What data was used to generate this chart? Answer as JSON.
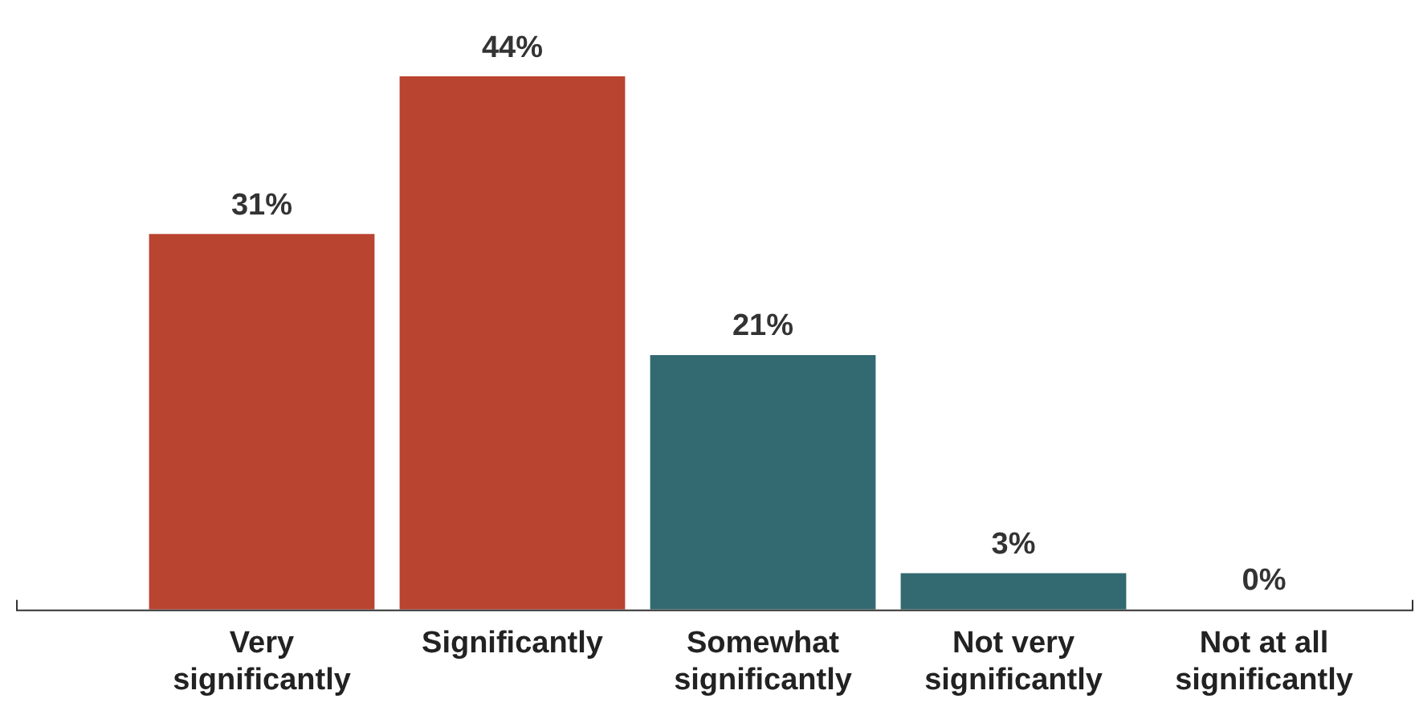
{
  "chart_data": {
    "type": "bar",
    "categories": [
      "Very significantly",
      "Significantly",
      "Somewhat significantly",
      "Not very significantly",
      "Not at all significantly"
    ],
    "values": [
      31,
      44,
      21,
      3,
      0
    ],
    "colors": [
      "#b94430",
      "#b94430",
      "#336970",
      "#336970",
      "#336970"
    ],
    "data_labels": true,
    "value_labels": [
      "31%",
      "44%",
      "21%",
      "3%",
      "0%"
    ],
    "grid": false,
    "legend": false
  }
}
